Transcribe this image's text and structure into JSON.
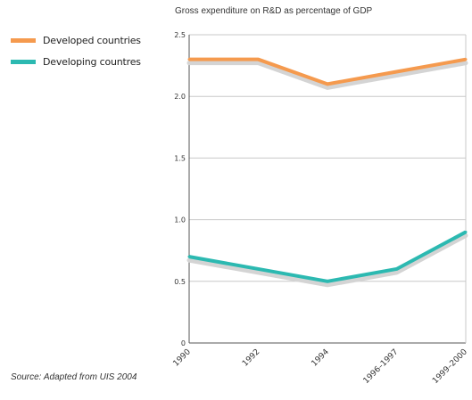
{
  "chart_data": {
    "type": "line",
    "title": "Gross expenditure on R&D as percentage of GDP",
    "categories": [
      "1990",
      "1992",
      "1994",
      "1996–1997",
      "1999–2000"
    ],
    "series": [
      {
        "name": "Developed countries",
        "color": "#f59a4e",
        "values": [
          2.3,
          2.3,
          2.1,
          2.2,
          2.3
        ]
      },
      {
        "name": "Developing countres",
        "color": "#2cb9b1",
        "values": [
          0.7,
          0.6,
          0.5,
          0.6,
          0.9
        ]
      }
    ],
    "ylim": [
      0,
      2.5
    ],
    "yticks": [
      "0",
      "0.5",
      "1.0",
      "1.5",
      "2.0",
      "2.5"
    ],
    "ytick_values": [
      0,
      0.5,
      1.0,
      1.5,
      2.0,
      2.5
    ],
    "grid": true,
    "legend": "top-left",
    "source": "Source: Adapted from UIS 2004"
  }
}
